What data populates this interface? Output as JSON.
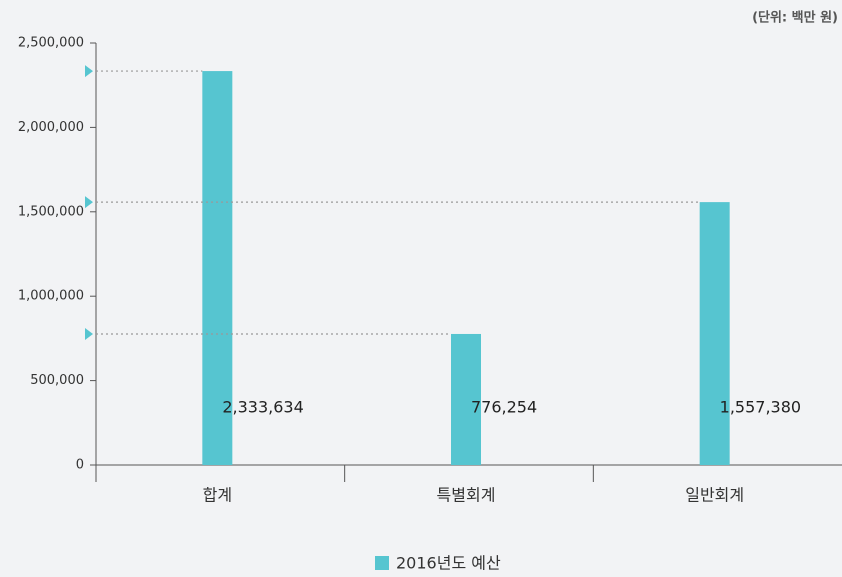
{
  "chart_data": {
    "type": "bar",
    "unit_label": "(단위: 백만 원)",
    "categories": [
      "합계",
      "특별회계",
      "일반회계"
    ],
    "series": [
      {
        "name": "2016년도 예산",
        "color": "#56c5d0",
        "values": [
          2333634,
          776254,
          1557380
        ],
        "value_labels": [
          "2,333,634",
          "776,254",
          "1,557,380"
        ]
      }
    ],
    "ylim": [
      0,
      2500000
    ],
    "yticks": [
      0,
      {
        "value": 500000,
        "label": "500,000"
      },
      {
        "value": 1000000,
        "label": "1,000,000"
      },
      {
        "value": 1500000,
        "label": "1,500,000"
      },
      {
        "value": 2000000,
        "label": "2,000,000"
      },
      {
        "value": 2500000,
        "label": "2,500,000"
      }
    ],
    "grid": false
  }
}
